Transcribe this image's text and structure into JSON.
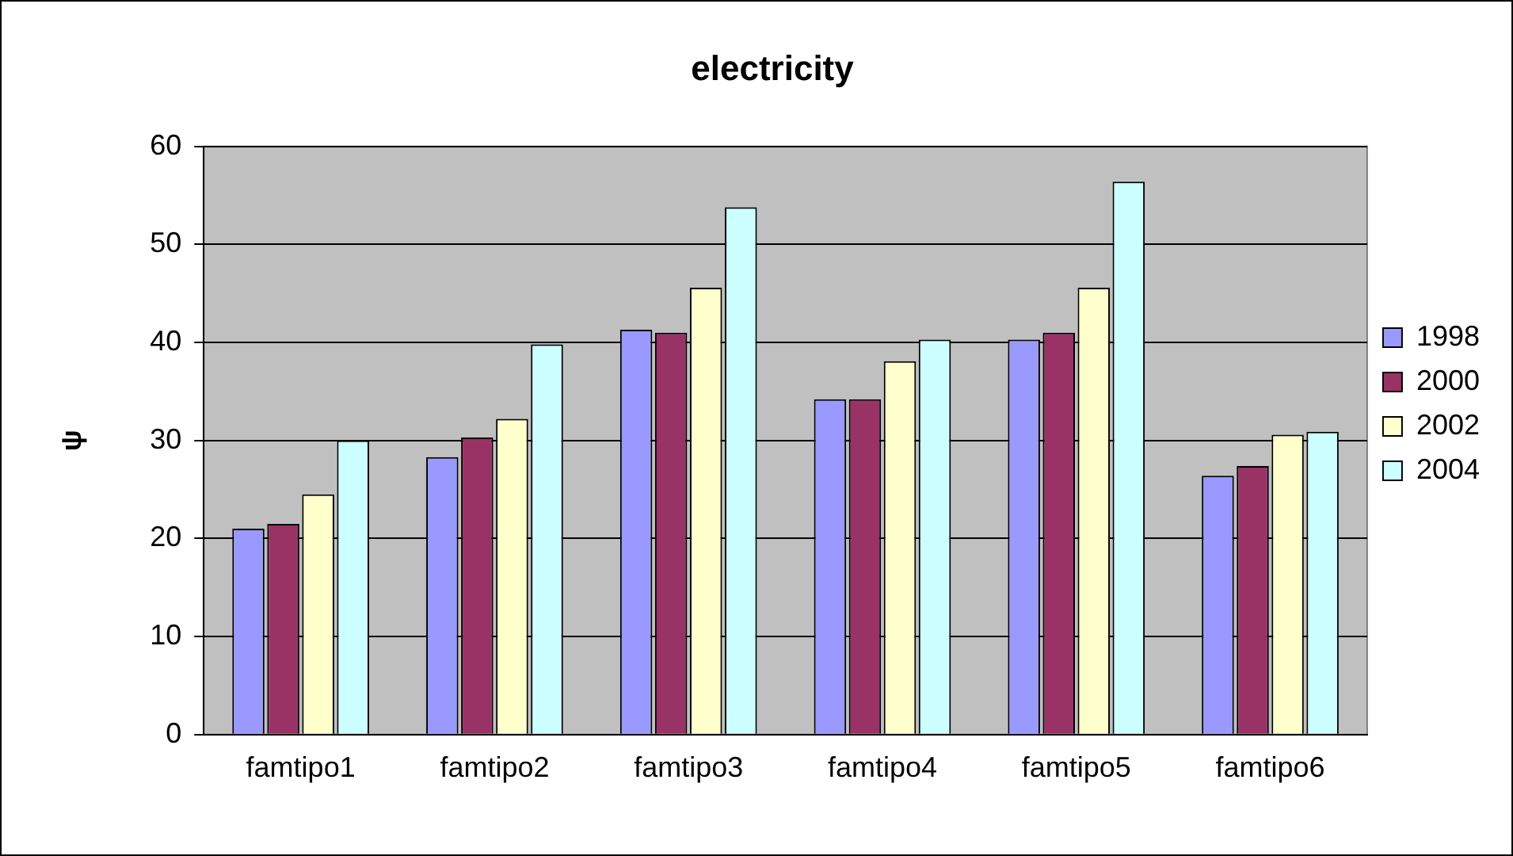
{
  "chart_data": {
    "type": "bar",
    "title": "electricity",
    "ylabel": "ψ",
    "categories": [
      "famtipo1",
      "famtipo2",
      "famtipo3",
      "famtipo4",
      "famtipo5",
      "famtipo6"
    ],
    "series": [
      {
        "name": "1998",
        "color": "#9999ff",
        "values": [
          21,
          28.3,
          41.3,
          34.2,
          40.3,
          26.4
        ]
      },
      {
        "name": "2000",
        "color": "#993366",
        "values": [
          21.5,
          30.3,
          41,
          34.2,
          41,
          27.4
        ]
      },
      {
        "name": "2002",
        "color": "#ffffcc",
        "values": [
          24.5,
          32.2,
          45.6,
          38.1,
          45.6,
          30.6
        ]
      },
      {
        "name": "2004",
        "color": "#ccffff",
        "values": [
          30,
          39.8,
          53.8,
          40.3,
          56.4,
          30.9
        ]
      }
    ],
    "ylim": [
      0,
      60
    ],
    "yticks": [
      0,
      10,
      20,
      30,
      40,
      50,
      60
    ],
    "grid": "y",
    "legend": "right"
  }
}
